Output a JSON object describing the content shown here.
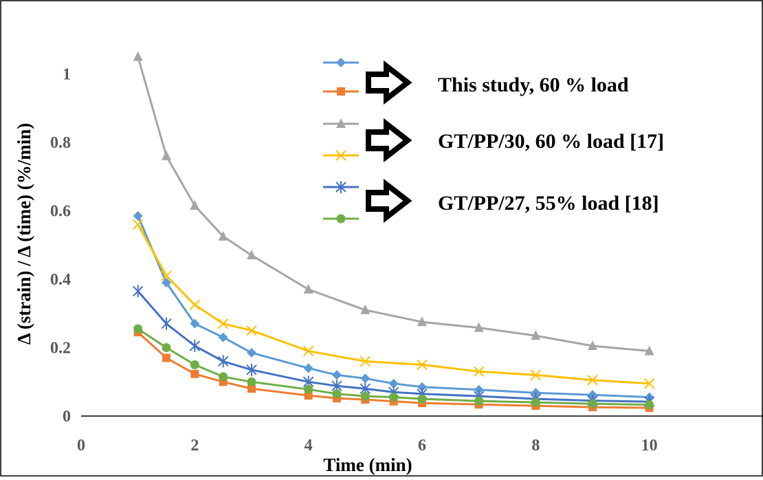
{
  "chart_data": {
    "type": "line",
    "title": "",
    "xlabel": "Time (min)",
    "ylabel": "Δ (strain) / Δ (time) (%/min)",
    "xlim": [
      0,
      12
    ],
    "ylim": [
      0,
      1.2
    ],
    "x_ticks": [
      "0",
      "2",
      "4",
      "6",
      "8",
      "10"
    ],
    "y_ticks": [
      "0",
      "0.2",
      "0.4",
      "0.6",
      "0.8",
      "1"
    ],
    "grid": false,
    "legend_position": "top-right",
    "legend_groups": [
      {
        "label": "This study, 60 % load",
        "series": [
          0,
          1
        ]
      },
      {
        "label": "GT/PP/30, 60 % load [17]",
        "series": [
          2,
          3
        ]
      },
      {
        "label": "GT/PP/27, 55% load [18]",
        "series": [
          4,
          5
        ]
      }
    ],
    "series": [
      {
        "color": "#5B9BD5",
        "marker": "diamond",
        "x": [
          1,
          1.5,
          2,
          2.5,
          3,
          4,
          4.5,
          5,
          5.5,
          6,
          7,
          8,
          9,
          10
        ],
        "y": [
          0.585,
          0.39,
          0.27,
          0.23,
          0.185,
          0.14,
          0.12,
          0.11,
          0.095,
          0.085,
          0.077,
          0.068,
          0.062,
          0.055
        ]
      },
      {
        "color": "#ED7D31",
        "marker": "square",
        "x": [
          1,
          1.5,
          2,
          2.5,
          3,
          4,
          4.5,
          5,
          5.5,
          6,
          7,
          8,
          9,
          10
        ],
        "y": [
          0.245,
          0.17,
          0.123,
          0.1,
          0.08,
          0.06,
          0.052,
          0.048,
          0.043,
          0.038,
          0.034,
          0.03,
          0.026,
          0.024
        ]
      },
      {
        "color": "#A5A5A5",
        "marker": "triangle",
        "x": [
          1,
          1.5,
          2,
          2.5,
          3,
          4,
          5,
          6,
          7,
          8,
          9,
          10
        ],
        "y": [
          1.05,
          0.76,
          0.615,
          0.525,
          0.47,
          0.37,
          0.31,
          0.275,
          0.258,
          0.235,
          0.205,
          0.19
        ]
      },
      {
        "color": "#FFC000",
        "marker": "x",
        "x": [
          1,
          1.5,
          2,
          2.5,
          3,
          4,
          5,
          6,
          7,
          8,
          9,
          10
        ],
        "y": [
          0.56,
          0.41,
          0.325,
          0.27,
          0.25,
          0.19,
          0.16,
          0.15,
          0.13,
          0.12,
          0.105,
          0.095
        ]
      },
      {
        "color": "#4472C4",
        "marker": "asterisk",
        "x": [
          1,
          1.5,
          2,
          2.5,
          3,
          4,
          4.5,
          5,
          5.5,
          6,
          7,
          8,
          9,
          10
        ],
        "y": [
          0.365,
          0.27,
          0.205,
          0.16,
          0.135,
          0.1,
          0.088,
          0.08,
          0.07,
          0.065,
          0.058,
          0.05,
          0.045,
          0.042
        ]
      },
      {
        "color": "#70AD47",
        "marker": "circle",
        "x": [
          1,
          1.5,
          2,
          2.5,
          3,
          4,
          4.5,
          5,
          5.5,
          6,
          7,
          8,
          9,
          10
        ],
        "y": [
          0.255,
          0.2,
          0.15,
          0.115,
          0.1,
          0.078,
          0.065,
          0.058,
          0.055,
          0.05,
          0.044,
          0.04,
          0.036,
          0.033
        ]
      }
    ]
  }
}
